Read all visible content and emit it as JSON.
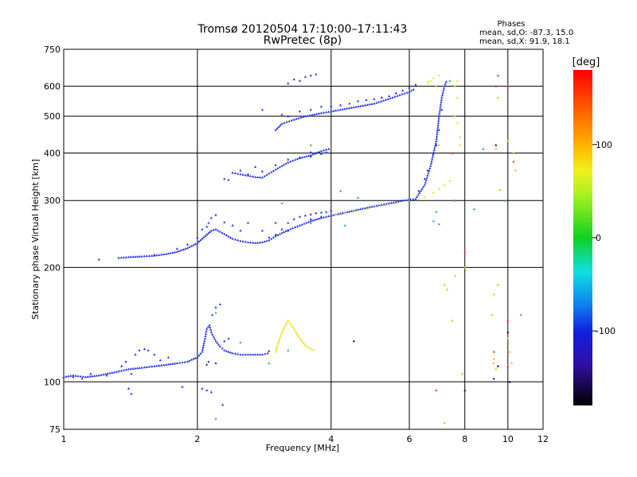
{
  "chart_data": {
    "type": "scatter",
    "title": "Tromsø 20120504 17:10:00–17:11:43",
    "subtitle": "RwPretec (8p)",
    "xlabel": "Frequency [MHz]",
    "ylabel": "Stationary phase Virtual Height [km]",
    "x_scale": "log",
    "y_scale": "log",
    "xlim": [
      1,
      12
    ],
    "ylim": [
      75,
      750
    ],
    "x_ticks": [
      1,
      2,
      4,
      6,
      8,
      10,
      12
    ],
    "y_ticks": [
      75,
      100,
      200,
      300,
      400,
      500,
      600,
      750
    ],
    "grid": true,
    "legend": {
      "title": "Phases",
      "line1": "mean, sd,O: -87.3, 15.0",
      "line2": "mean, sd,X:  91.9, 18.1"
    },
    "colorbar": {
      "label": "[deg]",
      "ticks": [
        100,
        0,
        -100
      ],
      "range": [
        -180,
        180
      ]
    },
    "series": [
      {
        "color_value": -95,
        "color": "#1e2fe6",
        "trace": [
          [
            1.0,
            103
          ],
          [
            1.05,
            104
          ],
          [
            1.12,
            103
          ],
          [
            1.2,
            104
          ],
          [
            1.3,
            106
          ],
          [
            1.4,
            108
          ],
          [
            1.5,
            109
          ],
          [
            1.6,
            110
          ],
          [
            1.7,
            111
          ],
          [
            1.8,
            112
          ],
          [
            1.9,
            113
          ],
          [
            1.96,
            115
          ],
          [
            2.0,
            116
          ],
          [
            2.05,
            120
          ],
          [
            2.08,
            130
          ],
          [
            2.1,
            138
          ],
          [
            2.13,
            141
          ],
          [
            2.15,
            135
          ],
          [
            2.2,
            128
          ],
          [
            2.25,
            124
          ],
          [
            2.3,
            121
          ],
          [
            2.4,
            119
          ],
          [
            2.5,
            118
          ],
          [
            2.6,
            118
          ],
          [
            2.7,
            118
          ],
          [
            2.8,
            118
          ],
          [
            2.88,
            119
          ],
          [
            2.92,
            122
          ]
        ],
        "points": [
          [
            1.05,
            103
          ],
          [
            1.1,
            102
          ],
          [
            1.15,
            105
          ],
          [
            1.25,
            104
          ],
          [
            1.35,
            110
          ],
          [
            1.38,
            113
          ],
          [
            1.42,
            105
          ],
          [
            1.45,
            118
          ],
          [
            1.48,
            121
          ],
          [
            1.52,
            122
          ],
          [
            1.55,
            121
          ],
          [
            1.6,
            118
          ],
          [
            1.65,
            114
          ],
          [
            1.72,
            116
          ],
          [
            1.4,
            96
          ],
          [
            1.42,
            93
          ],
          [
            1.85,
            97
          ],
          [
            2.05,
            96
          ],
          [
            2.1,
            95
          ],
          [
            2.15,
            94
          ],
          [
            2.1,
            111
          ],
          [
            2.12,
            113
          ],
          [
            2.2,
            112
          ],
          [
            2.28,
            87
          ],
          [
            2.3,
            128
          ],
          [
            2.35,
            130
          ],
          [
            2.16,
            150
          ],
          [
            2.2,
            157
          ],
          [
            2.25,
            160
          ]
        ]
      },
      {
        "color_value": -95,
        "color": "#1e2fe6",
        "trace": [
          [
            1.33,
            212
          ],
          [
            1.4,
            213
          ],
          [
            1.5,
            214
          ],
          [
            1.6,
            215
          ],
          [
            1.7,
            217
          ],
          [
            1.8,
            220
          ],
          [
            1.9,
            225
          ],
          [
            2.0,
            232
          ],
          [
            2.05,
            238
          ],
          [
            2.1,
            244
          ],
          [
            2.15,
            250
          ],
          [
            2.2,
            252
          ],
          [
            2.3,
            245
          ],
          [
            2.4,
            238
          ],
          [
            2.5,
            235
          ],
          [
            2.6,
            233
          ],
          [
            2.7,
            232
          ],
          [
            2.8,
            233
          ],
          [
            2.9,
            236
          ],
          [
            3.0,
            242
          ],
          [
            3.2,
            251
          ],
          [
            3.4,
            258
          ],
          [
            3.6,
            265
          ],
          [
            3.8,
            270
          ],
          [
            4.0,
            274
          ],
          [
            4.3,
            279
          ],
          [
            4.6,
            284
          ],
          [
            5.0,
            290
          ],
          [
            5.4,
            295
          ],
          [
            5.8,
            300
          ],
          [
            6.2,
            303
          ],
          [
            6.5,
            330
          ],
          [
            6.7,
            370
          ],
          [
            6.9,
            430
          ],
          [
            7.0,
            500
          ],
          [
            7.1,
            560
          ],
          [
            7.2,
            600
          ],
          [
            7.3,
            625
          ]
        ],
        "points": [
          [
            1.2,
            210
          ],
          [
            1.33,
            212
          ],
          [
            1.6,
            216
          ],
          [
            1.8,
            224
          ],
          [
            1.9,
            230
          ],
          [
            2.0,
            240
          ],
          [
            2.05,
            252
          ],
          [
            2.1,
            256
          ],
          [
            2.12,
            262
          ],
          [
            2.15,
            270
          ],
          [
            2.2,
            275
          ],
          [
            2.3,
            263
          ],
          [
            2.4,
            258
          ],
          [
            2.5,
            250
          ],
          [
            2.6,
            262
          ],
          [
            2.8,
            250
          ],
          [
            3.0,
            262
          ],
          [
            3.1,
            252
          ],
          [
            3.2,
            262
          ],
          [
            3.3,
            268
          ],
          [
            3.4,
            272
          ],
          [
            3.5,
            274
          ],
          [
            3.6,
            276
          ],
          [
            3.7,
            278
          ],
          [
            3.8,
            279
          ],
          [
            3.9,
            280
          ],
          [
            4.0,
            282
          ],
          [
            2.9,
            240
          ],
          [
            3.0,
            244
          ],
          [
            3.2,
            250
          ],
          [
            3.6,
            268
          ],
          [
            3.8,
            272
          ],
          [
            6.3,
            318
          ],
          [
            6.5,
            342
          ],
          [
            6.6,
            360
          ],
          [
            6.8,
            400
          ],
          [
            6.9,
            420
          ],
          [
            7.0,
            460
          ],
          [
            7.1,
            520
          ]
        ]
      },
      {
        "color_value": -95,
        "color": "#1e2fe6",
        "trace": [
          [
            2.4,
            355
          ],
          [
            2.5,
            352
          ],
          [
            2.6,
            349
          ],
          [
            2.7,
            346
          ],
          [
            2.8,
            345
          ],
          [
            3.0,
            362
          ],
          [
            3.2,
            378
          ],
          [
            3.4,
            388
          ],
          [
            3.6,
            395
          ],
          [
            3.8,
            405
          ],
          [
            4.0,
            412
          ]
        ],
        "points": [
          [
            2.5,
            360
          ],
          [
            2.6,
            352
          ],
          [
            2.7,
            368
          ],
          [
            2.8,
            358
          ],
          [
            3.0,
            372
          ],
          [
            3.2,
            385
          ],
          [
            3.4,
            390
          ],
          [
            3.6,
            392
          ],
          [
            3.8,
            398
          ],
          [
            3.9,
            402
          ],
          [
            3.6,
            402
          ],
          [
            3.7,
            400
          ],
          [
            2.3,
            342
          ],
          [
            2.35,
            340
          ]
        ]
      },
      {
        "color_value": -95,
        "color": "#1e2fe6",
        "trace": [
          [
            3.0,
            460
          ],
          [
            3.1,
            478
          ],
          [
            3.3,
            490
          ],
          [
            3.5,
            500
          ],
          [
            3.8,
            510
          ],
          [
            4.0,
            515
          ],
          [
            4.5,
            528
          ],
          [
            5.0,
            540
          ],
          [
            5.5,
            560
          ],
          [
            6.0,
            580
          ],
          [
            6.2,
            592
          ]
        ],
        "points": [
          [
            2.8,
            520
          ],
          [
            3.1,
            505
          ],
          [
            3.2,
            500
          ],
          [
            3.4,
            515
          ],
          [
            3.6,
            520
          ],
          [
            3.8,
            530
          ],
          [
            4.0,
            532
          ],
          [
            4.2,
            535
          ],
          [
            4.4,
            540
          ],
          [
            4.6,
            548
          ],
          [
            4.8,
            552
          ],
          [
            5.0,
            555
          ],
          [
            5.2,
            560
          ],
          [
            5.4,
            565
          ],
          [
            5.6,
            575
          ],
          [
            5.8,
            585
          ],
          [
            6.0,
            595
          ],
          [
            6.2,
            605
          ],
          [
            3.4,
            620
          ],
          [
            3.5,
            635
          ],
          [
            3.6,
            640
          ],
          [
            3.7,
            645
          ],
          [
            3.2,
            610
          ],
          [
            3.3,
            625
          ]
        ]
      },
      {
        "color_value": 95,
        "color": "#e8e020",
        "trace": [
          [
            3.0,
            120
          ],
          [
            3.05,
            128
          ],
          [
            3.1,
            135
          ],
          [
            3.2,
            145
          ],
          [
            3.3,
            138
          ],
          [
            3.4,
            130
          ],
          [
            3.5,
            125
          ],
          [
            3.6,
            122
          ],
          [
            3.7,
            121
          ]
        ],
        "points": [
          [
            4.1,
            275
          ],
          [
            4.3,
            278
          ],
          [
            4.5,
            281
          ],
          [
            4.8,
            285
          ],
          [
            5.0,
            288
          ],
          [
            5.3,
            292
          ],
          [
            5.6,
            295
          ],
          [
            6.0,
            300
          ],
          [
            6.3,
            302
          ],
          [
            6.5,
            306
          ],
          [
            6.8,
            315
          ],
          [
            7.0,
            322
          ],
          [
            7.2,
            330
          ],
          [
            7.4,
            338
          ],
          [
            6.7,
            620
          ],
          [
            6.8,
            630
          ],
          [
            7.0,
            640
          ],
          [
            7.6,
            500
          ],
          [
            7.7,
            480
          ],
          [
            7.8,
            440
          ],
          [
            7.8,
            420
          ],
          [
            7.7,
            560
          ],
          [
            7.6,
            600
          ],
          [
            7.7,
            620
          ]
        ]
      },
      {
        "color_value": 100,
        "color": "#e8c010",
        "trace": [],
        "points": [
          [
            6.6,
            615
          ],
          [
            6.9,
            600
          ],
          [
            7.2,
            180
          ],
          [
            7.3,
            175
          ],
          [
            7.6,
            190
          ],
          [
            8.0,
            200
          ],
          [
            9.5,
            180
          ],
          [
            9.2,
            150
          ],
          [
            9.3,
            170
          ],
          [
            9.6,
            320
          ],
          [
            9.4,
            410
          ],
          [
            9.5,
            560
          ],
          [
            10.0,
            430
          ],
          [
            10.3,
            400
          ],
          [
            10.4,
            360
          ],
          [
            10.0,
            130
          ],
          [
            10.1,
            120
          ],
          [
            9.3,
            112
          ],
          [
            9.4,
            108
          ],
          [
            7.0,
            420
          ],
          [
            7.2,
            78
          ],
          [
            10.2,
            112
          ],
          [
            9.3,
            115
          ],
          [
            7.9,
            105
          ],
          [
            7.5,
            145
          ]
        ]
      },
      {
        "color_value": 150,
        "color": "#e83020",
        "trace": [],
        "points": [
          [
            9.3,
            120
          ],
          [
            10.0,
            110
          ],
          [
            10.0,
            145
          ],
          [
            10.0,
            600
          ],
          [
            9.4,
            600
          ],
          [
            9.5,
            640
          ],
          [
            8.0,
            220
          ],
          [
            7.5,
            400
          ],
          [
            6.9,
            95
          ],
          [
            10.3,
            380
          ],
          [
            7.6,
            300
          ]
        ]
      },
      {
        "color_value": -60,
        "color": "#20a0e0",
        "trace": [],
        "points": [
          [
            3.1,
            295
          ],
          [
            4.2,
            318
          ],
          [
            4.6,
            305
          ],
          [
            3.6,
            262
          ],
          [
            2.5,
            127
          ],
          [
            3.2,
            121
          ],
          [
            2.9,
            112
          ],
          [
            7.6,
            300
          ],
          [
            8.8,
            410
          ],
          [
            9.9,
            300
          ],
          [
            6.8,
            265
          ],
          [
            2.2,
            80
          ],
          [
            10.7,
            150
          ]
        ]
      },
      {
        "color_value": -10,
        "color": "#20c040",
        "trace": [],
        "points": [
          [
            4.3,
            258
          ],
          [
            3.6,
            420
          ],
          [
            6.0,
            300
          ],
          [
            7.4,
            620
          ],
          [
            2.2,
            152
          ],
          [
            6.9,
            280
          ],
          [
            7.0,
            260
          ],
          [
            8.4,
            285
          ]
        ]
      },
      {
        "color_value": -150,
        "color": "#101030",
        "trace": [],
        "points": [
          [
            10.0,
            135
          ],
          [
            10.1,
            100
          ],
          [
            9.5,
            110
          ],
          [
            9.3,
            102
          ],
          [
            4.5,
            128
          ],
          [
            8.0,
            95
          ],
          [
            9.4,
            420
          ]
        ]
      }
    ]
  }
}
